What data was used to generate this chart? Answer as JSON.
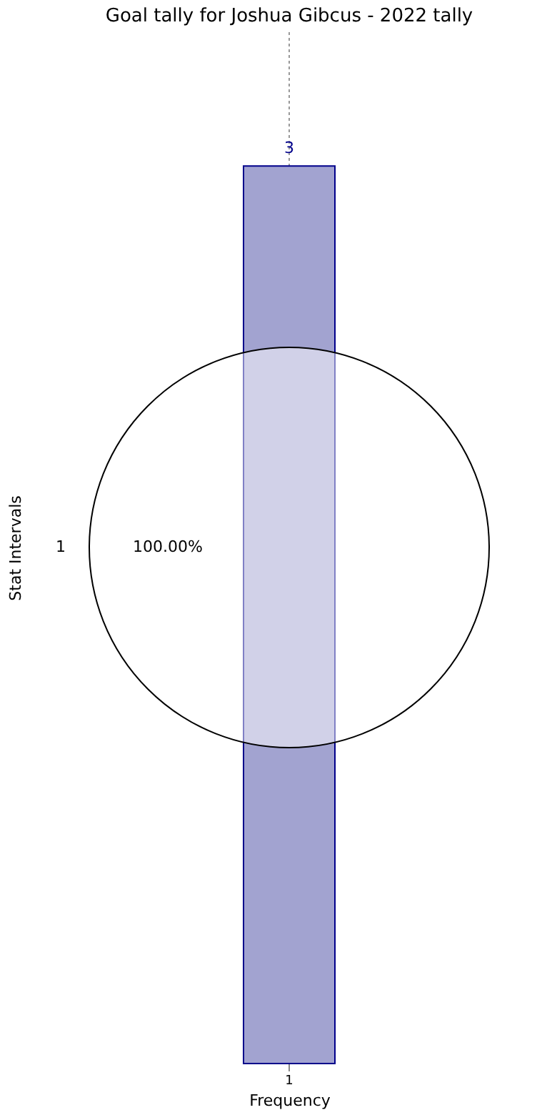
{
  "chart_data": [
    {
      "type": "bar",
      "title": "Goal tally for Joshua Gibcus - 2022 tally",
      "xlabel": "Frequency",
      "ylabel": "Stat Intervals",
      "categories": [
        "1"
      ],
      "values": [
        3
      ],
      "ylim": [
        0,
        3.45
      ],
      "data_labels": true,
      "color": "#a2a3d0",
      "grid": "x",
      "tick_labels": "x"
    },
    {
      "type": "pie",
      "categories": [
        "1"
      ],
      "values": [
        100
      ],
      "colors": [
        "#ffffff"
      ],
      "value_labels": [
        "100.00%"
      ]
    }
  ]
}
